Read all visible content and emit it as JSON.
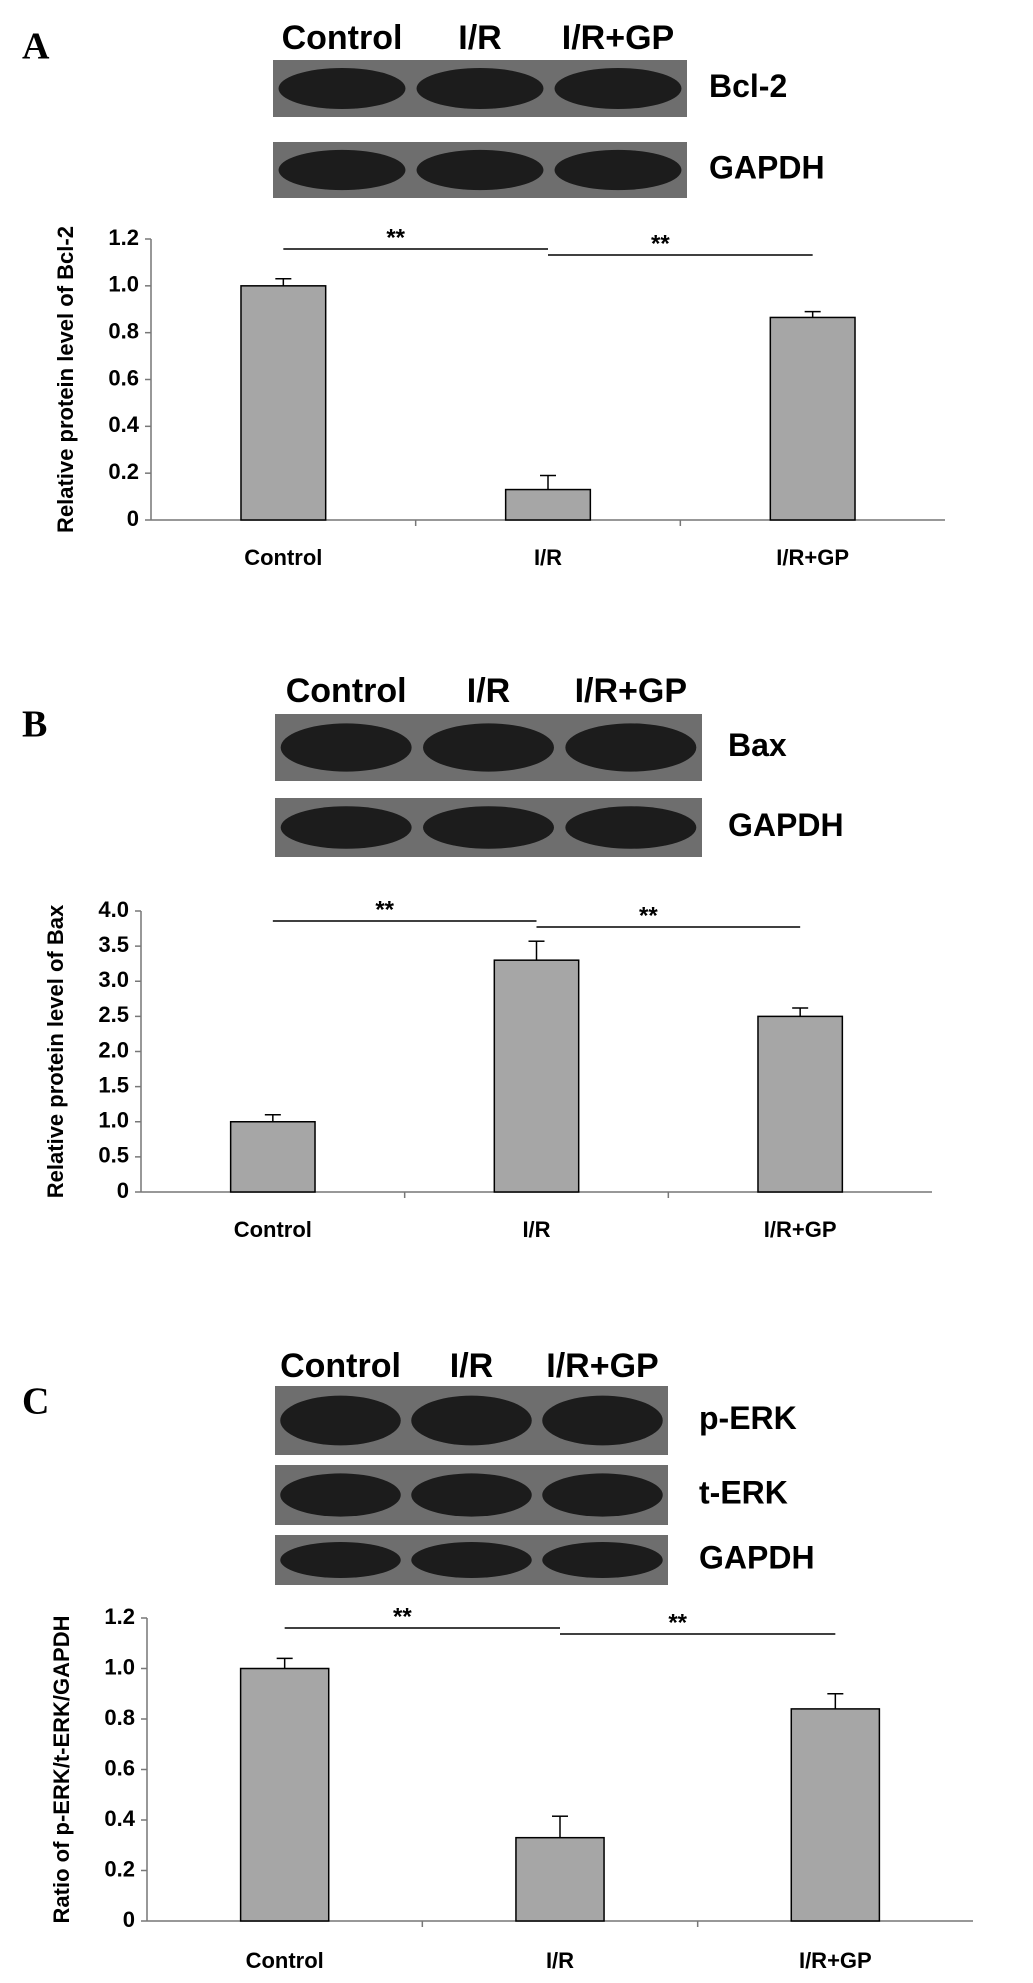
{
  "chart_data": [
    {
      "type": "bar",
      "panel": "A",
      "lanes": [
        "Control",
        "I/R",
        "I/R+GP"
      ],
      "blot_rows": [
        "Bcl-2",
        "GAPDH"
      ],
      "ylabel": "Relative protein level of Bcl-2",
      "categories": [
        "Control",
        "I/R",
        "I/R+GP"
      ],
      "values": [
        1.0,
        0.13,
        0.865
      ],
      "errors": [
        0.03,
        0.06,
        0.025
      ],
      "color": "#a6a6a6",
      "ylim": [
        0,
        1.2
      ],
      "yticks": [
        0,
        0.2,
        0.4,
        0.6,
        0.8,
        {
          "value": 1,
          "label": "1.0"
        },
        1.2
      ],
      "significance": [
        "**",
        "**"
      ]
    },
    {
      "type": "bar",
      "panel": "B",
      "lanes": [
        "Control",
        "I/R",
        "I/R+GP"
      ],
      "blot_rows": [
        "Bax",
        "GAPDH"
      ],
      "ylabel": "Relative protein level of Bax",
      "categories": [
        "Control",
        "I/R",
        "I/R+GP"
      ],
      "values": [
        1.0,
        3.3,
        2.5
      ],
      "errors": [
        0.1,
        0.27,
        0.12
      ],
      "color": "#a6a6a6",
      "ylim": [
        0,
        4
      ],
      "yticks": [
        0,
        0.5,
        {
          "value": 1,
          "label": "1.0"
        },
        1.5,
        {
          "value": 2,
          "label": "2.0"
        },
        2.5,
        {
          "value": 3,
          "label": "3.0"
        },
        3.5,
        {
          "value": 4,
          "label": "4.0"
        }
      ],
      "significance": [
        "**",
        "**"
      ]
    },
    {
      "type": "bar",
      "panel": "C",
      "lanes": [
        "Control",
        "I/R",
        "I/R+GP"
      ],
      "blot_rows": [
        "p-ERK",
        "t-ERK",
        "GAPDH"
      ],
      "ylabel": "Ratio of p-ERK/t-ERK/GAPDH",
      "categories": [
        "Control",
        "I/R",
        "I/R+GP"
      ],
      "values": [
        1.0,
        0.33,
        0.84
      ],
      "errors": [
        0.04,
        0.085,
        0.06
      ],
      "color": "#a6a6a6",
      "ylim": [
        0,
        1.2
      ],
      "yticks": [
        0,
        0.2,
        0.4,
        0.6,
        0.8,
        {
          "value": 1,
          "label": "1.0"
        },
        1.2
      ],
      "significance": [
        "**",
        "**"
      ]
    }
  ]
}
